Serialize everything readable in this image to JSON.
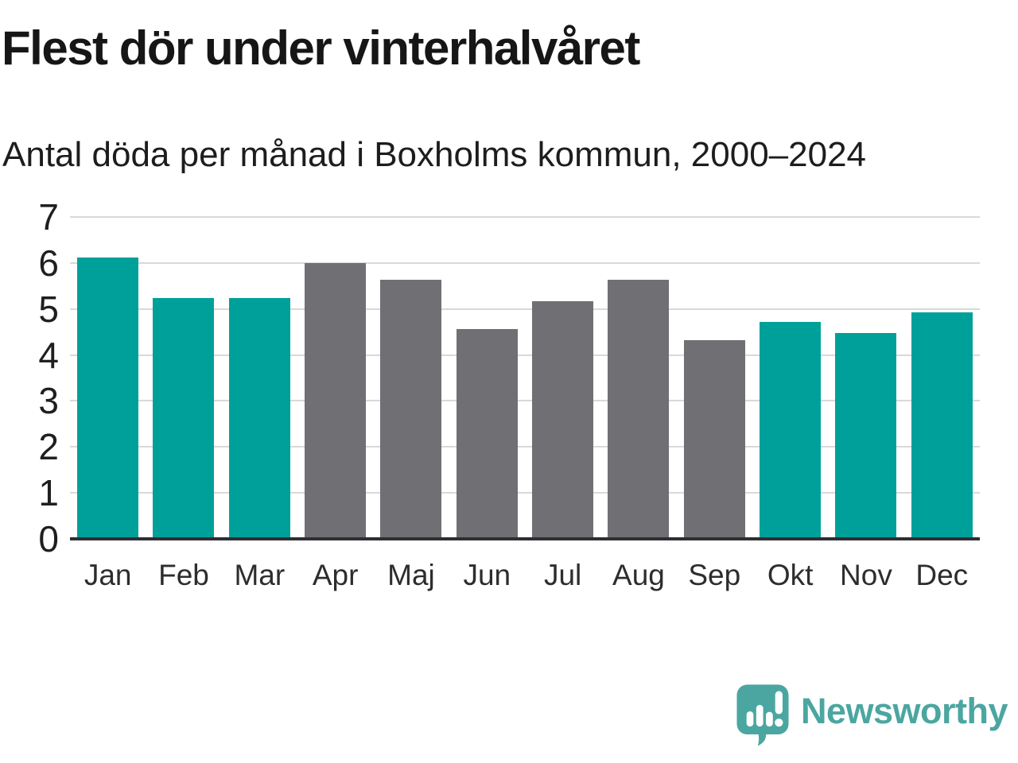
{
  "chart_data": {
    "type": "bar",
    "title": "Flest dör under vinterhalvåret",
    "subtitle": "Antal döda per månad i Boxholms kommun, 2000–2024",
    "categories": [
      "Jan",
      "Feb",
      "Mar",
      "Apr",
      "Maj",
      "Jun",
      "Jul",
      "Aug",
      "Sep",
      "Okt",
      "Nov",
      "Dec"
    ],
    "values": [
      6.12,
      5.24,
      5.24,
      6.0,
      5.64,
      4.56,
      5.16,
      5.64,
      4.32,
      4.72,
      4.48,
      4.92
    ],
    "series_colors": [
      "teal",
      "teal",
      "teal",
      "gray",
      "gray",
      "gray",
      "gray",
      "gray",
      "gray",
      "teal",
      "teal",
      "teal"
    ],
    "highlighted_months": [
      "Jan",
      "Feb",
      "Mar",
      "Okt",
      "Nov",
      "Dec"
    ],
    "xlabel": "",
    "ylabel": "",
    "ylim": [
      0,
      7
    ],
    "yticks": [
      0,
      1,
      2,
      3,
      4,
      5,
      6,
      7
    ],
    "grid": "horizontal",
    "legend": "none",
    "palette": {
      "teal": "#00a09a",
      "gray": "#6f6f74"
    }
  },
  "branding": {
    "wordmark": "Newsworthy",
    "logo_color": "#4ba6a1",
    "logo_icon": "speech-bubble-with-bar-chart-and-exclamation"
  }
}
